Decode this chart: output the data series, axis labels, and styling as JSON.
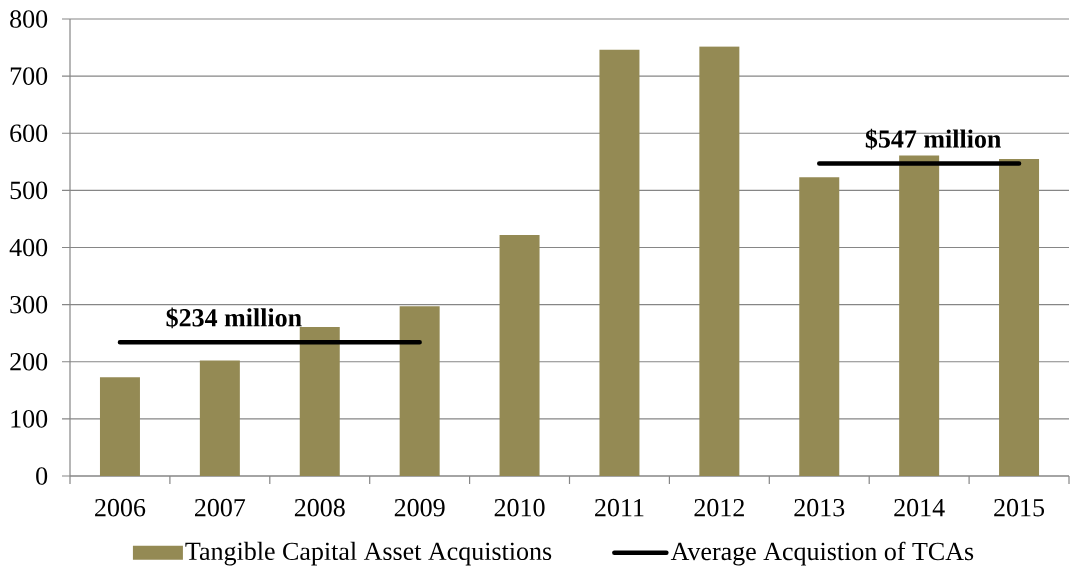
{
  "chart_data": {
    "type": "bar",
    "categories": [
      "2006",
      "2007",
      "2008",
      "2009",
      "2010",
      "2011",
      "2012",
      "2013",
      "2014",
      "2015"
    ],
    "series": [
      {
        "name": "Tangible Capital Asset Acquistions",
        "color": "#948a54",
        "values": [
          173,
          202,
          261,
          297,
          422,
          746,
          752,
          523,
          561,
          555
        ]
      },
      {
        "name": "Average Acquistion of TCAs",
        "type": "line",
        "color": "#000000",
        "values": [
          234,
          234,
          234,
          234,
          null,
          null,
          null,
          547,
          547,
          547
        ]
      }
    ],
    "ylim": [
      0,
      800
    ],
    "yticks": [
      0,
      100,
      200,
      300,
      400,
      500,
      600,
      700,
      800
    ],
    "grid": "y",
    "legend": "bottom",
    "marker": "none",
    "line_style": "solid",
    "annotations": [
      {
        "text": "$234 million",
        "x": "2007",
        "y": 234
      },
      {
        "text": "$547 million",
        "x": "2014",
        "y": 547
      }
    ]
  }
}
